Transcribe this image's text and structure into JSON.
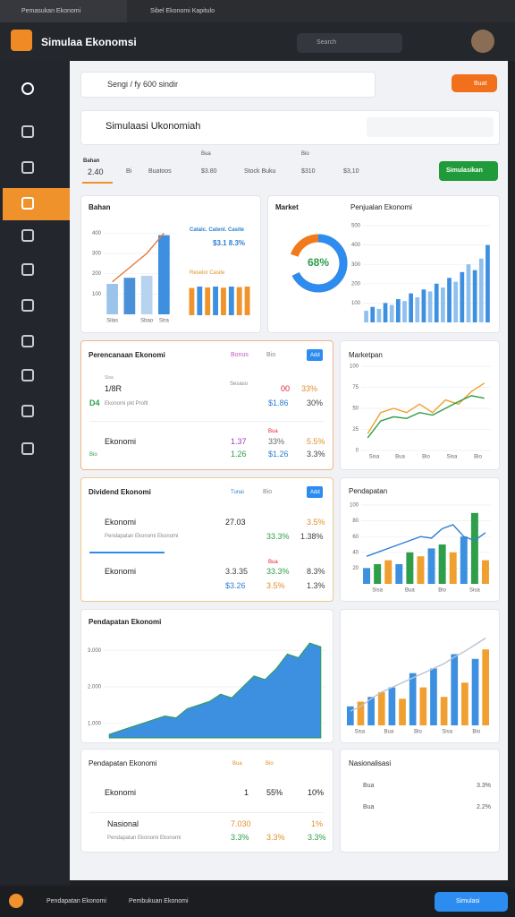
{
  "window": {
    "tabs": [
      "Pemasukan Ekonomi",
      "Sibel Ekonomi Kapitulo"
    ]
  },
  "header": {
    "title": "Simulaa Ekonomsi",
    "search": "Search"
  },
  "toolbar": {
    "path": "Sengi / fy 600 sindir",
    "button": "Buat"
  },
  "search": {
    "title": "Simulaasi Ukonomiah"
  },
  "tabs": {
    "items": [
      "Bahan",
      "2.40",
      "Bi",
      "Buatoos",
      "Bua",
      "$3.80",
      "Stock Buku",
      "Bio",
      "$310",
      "$3,10"
    ],
    "button": "Simulasikan"
  },
  "panels": [
    {
      "title": "Bahan",
      "texts": [
        "Catalc. Catenl. Casite",
        "$3.1 8.3%",
        "Reselor Casite"
      ],
      "chart": {
        "type": "bar",
        "ylim": [
          0,
          450
        ],
        "yticks": [
          100,
          200,
          300,
          400
        ],
        "categories": [
          "Silas",
          null,
          "Sbao",
          "Stra"
        ],
        "bars": {
          "colors": [
            "#9cc3ea",
            "#4a90d9",
            "#b7d3ef",
            "#3d8fe0"
          ],
          "values": [
            150,
            180,
            190,
            390
          ]
        },
        "lines": [
          {
            "color": "#e07b39",
            "values": [
              160,
              230,
              300,
              400
            ]
          }
        ]
      },
      "mini": {
        "type": "bar",
        "ylim": [
          0,
          100
        ],
        "bars": {
          "colors": [
            "#f0932b",
            "#3d8fe0",
            "#f0932b",
            "#3d8fe0",
            "#f0932b",
            "#3d8fe0",
            "#f0932b",
            "#f0932b"
          ],
          "values": [
            95,
            100,
            97,
            100,
            96,
            100,
            98,
            100
          ]
        }
      }
    },
    {
      "title": "Market",
      "subtitle": "Penjualan Ekonomi",
      "donut": {
        "value": 68,
        "label": "68%"
      },
      "chart": {
        "type": "bar",
        "ylim": [
          0,
          500
        ],
        "yticks": [
          100,
          200,
          300,
          400,
          500
        ],
        "bars": {
          "colors": [
            "#8fc0ee",
            "#3d8fe0"
          ],
          "values": [
            60,
            80,
            70,
            100,
            90,
            120,
            110,
            150,
            130,
            170,
            160,
            200,
            180,
            230,
            210,
            260,
            300,
            270,
            330,
            400
          ]
        }
      }
    },
    {
      "title": "Perencanaan Ekonomi",
      "tags": [
        "Bonus",
        "Bio"
      ],
      "button": "Add",
      "rows": [
        [
          "Sisa",
          "Sesaso",
          "1/8R",
          "00",
          "33%",
          "D4",
          "Ekonomi pkt Profit",
          "$1.86",
          "30%"
        ],
        [
          "Bua",
          "Ekonomi",
          "1.37",
          "33%",
          "5.5%",
          "Bio",
          "1.26",
          "$1.26",
          "3.3%"
        ]
      ]
    },
    {
      "title": "Marketpan",
      "chart": {
        "type": "line",
        "ylim": [
          0,
          100
        ],
        "yticks": [
          0,
          25,
          50,
          75,
          100
        ],
        "xlabels": [
          "Sisa",
          "Bua",
          "Bio",
          "Sisa",
          "Bio"
        ],
        "lines": [
          {
            "color": "#f0a030",
            "values": [
              20,
              45,
              50,
              45,
              55,
              45,
              60,
              55,
              70,
              80
            ]
          },
          {
            "color": "#2e9e4a",
            "values": [
              15,
              35,
              40,
              38,
              45,
              42,
              50,
              58,
              65,
              62
            ]
          }
        ]
      }
    },
    {
      "title": "Dividend Ekonomi",
      "tags": [
        "Tunai",
        "Bio"
      ],
      "button": "Add",
      "rows": [
        [
          "Ekonomi",
          "27.03",
          "3.5%",
          "Pendapatan Ekonomi Ekonomi",
          "33.3%",
          "1.38%"
        ],
        [
          "Bua",
          "Ekonomi",
          "3.3.35",
          "33.3%",
          "8.3%",
          "$3.26",
          "3.5%",
          "1.3%"
        ]
      ]
    },
    {
      "title": "Pendapatan",
      "chart": {
        "type": "bar",
        "ylim": [
          0,
          100
        ],
        "yticks": [
          20,
          40,
          60,
          80,
          100
        ],
        "xlabels": [
          "Sisa",
          "Bua",
          "Bio",
          "Sisa"
        ],
        "bars": {
          "colors": [
            "#3d8fe0",
            "#2e9e4a",
            "#f0a030"
          ],
          "values": [
            20,
            25,
            30,
            25,
            40,
            35,
            45,
            50,
            40,
            60,
            90,
            30
          ]
        },
        "lines": [
          {
            "color": "#2d7fd3",
            "values": [
              35,
              40,
              45,
              50,
              55,
              60,
              58,
              70,
              75,
              60,
              55,
              65
            ]
          }
        ]
      }
    },
    {
      "title": "Pendapatan Ekonomi",
      "chart": {
        "type": "area",
        "ylim": [
          600,
          3400
        ],
        "yticks": [
          {
            "value": 1000,
            "label": "1.000"
          },
          {
            "value": 2000,
            "label": "2.000"
          },
          {
            "value": 3000,
            "label": "3.000"
          }
        ],
        "area": {
          "color": "#3d8fe0",
          "values": [
            700,
            800,
            900,
            1000,
            1100,
            1200,
            1150,
            1400,
            1500,
            1600,
            1800,
            1700,
            2000,
            2300,
            2200,
            2500,
            2900,
            2800,
            3200,
            3100
          ]
        }
      }
    },
    {
      "chart": {
        "type": "bar",
        "ylim": [
          0,
          100
        ],
        "xlabels": [
          "Sisa",
          "Bua",
          "Bio",
          "Sisa",
          "Bio"
        ],
        "bars": {
          "colors": [
            "#3d8fe0",
            "#f0a030"
          ],
          "values": [
            20,
            25,
            30,
            35,
            40,
            28,
            55,
            40,
            60,
            30,
            75,
            45,
            70,
            80
          ]
        },
        "lines": [
          {
            "color": "#b8c4d4",
            "values": [
              15,
              20,
              28,
              35,
              40,
              45,
              50,
              55,
              60,
              65,
              72,
              78,
              85,
              92
            ]
          }
        ]
      }
    },
    {
      "title": "Pendapatan Ekonomi",
      "tags": [
        "Bua",
        "Bio"
      ],
      "rows": [
        [
          "Ekonomi",
          "1",
          "55%",
          "10%"
        ],
        [
          "Nasional",
          "7.030",
          "1%",
          "Pendapatan Ekonomi Ekonomi",
          "3.3%",
          "3.3%",
          "3.3%"
        ]
      ]
    },
    {
      "title": "Nasionalisasi",
      "items": [
        [
          "Bua",
          "3.3%"
        ],
        [
          "Bua",
          "2.2%"
        ]
      ]
    }
  ],
  "taskbar": {
    "items": [
      "Pendapatan Ekonomi",
      "Pembukuan Ekonomi"
    ],
    "button": "Simulasi"
  }
}
